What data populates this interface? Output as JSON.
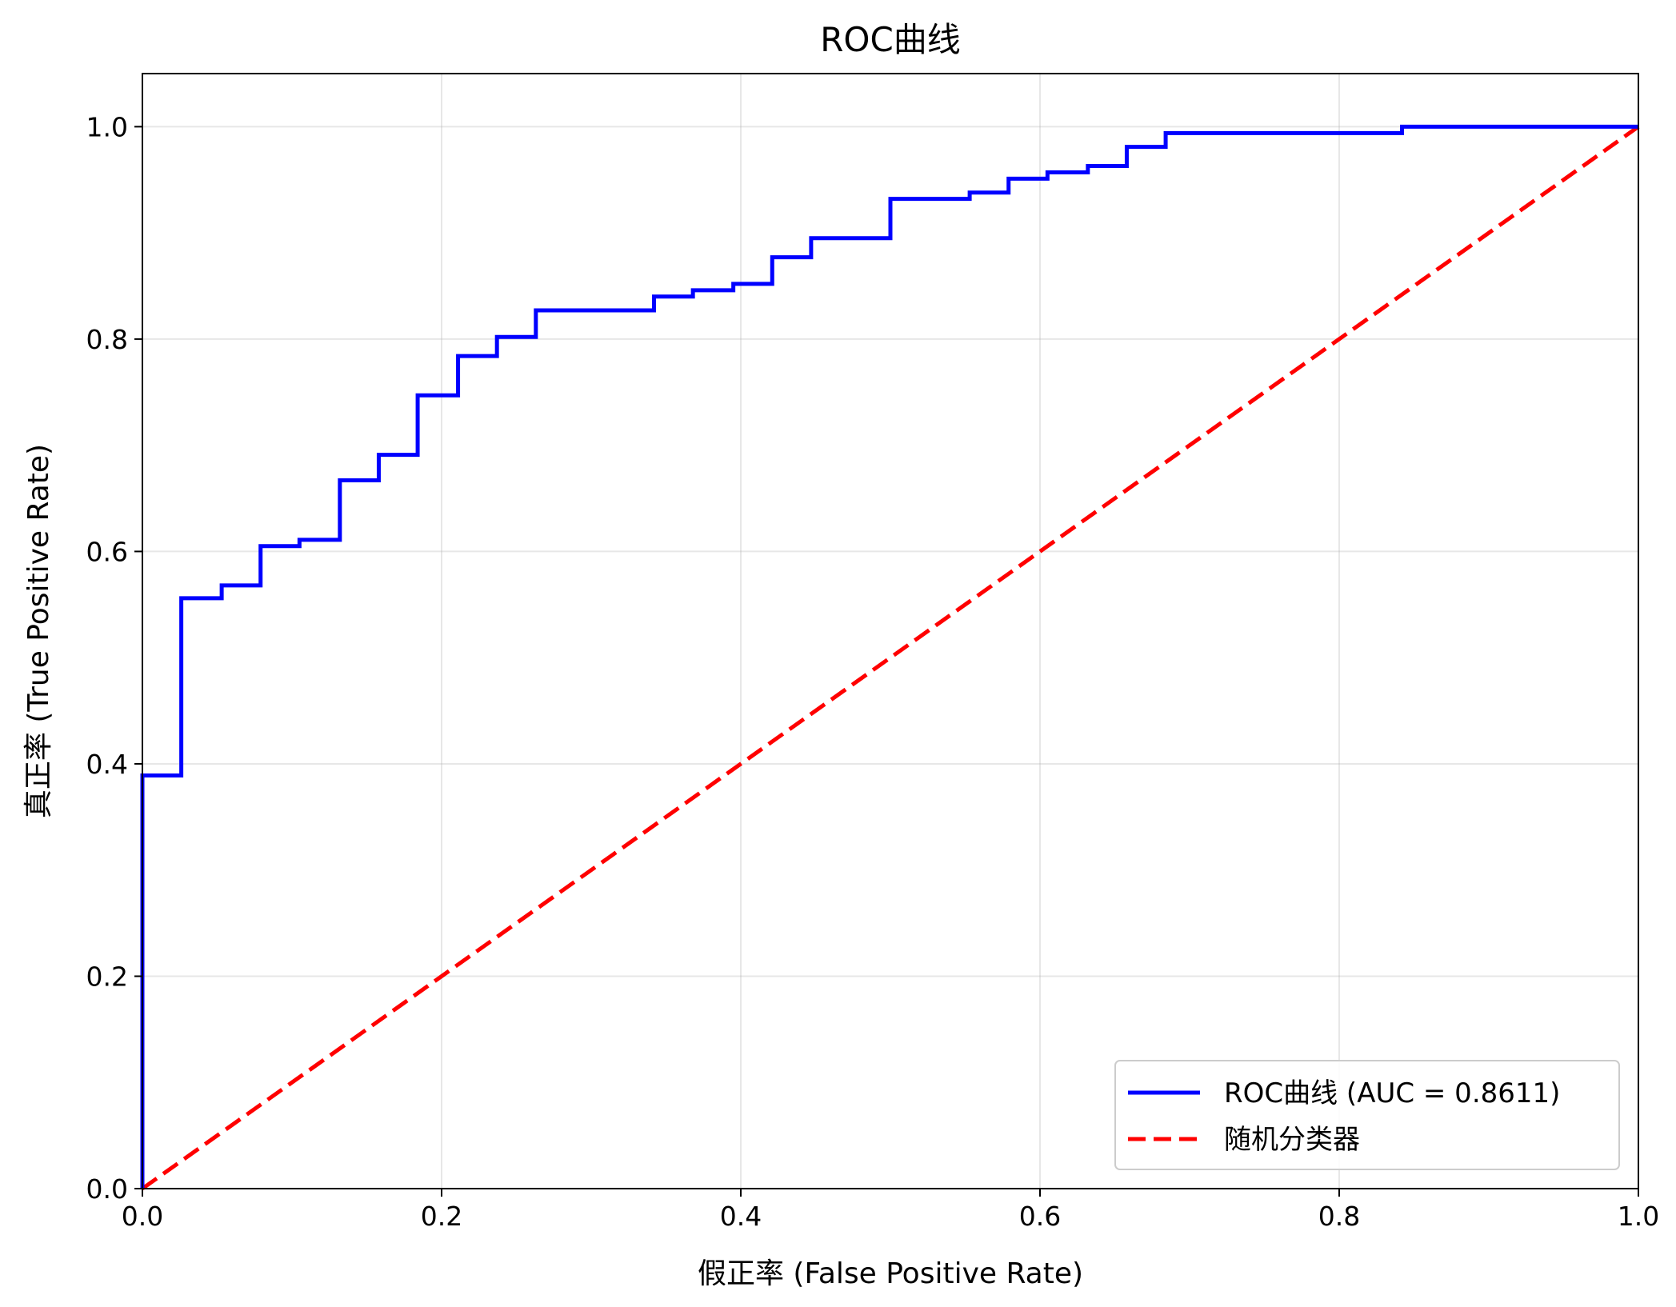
{
  "chart_data": {
    "type": "line",
    "title": "ROC曲线",
    "xlabel": "假正率 (False Positive Rate)",
    "ylabel": "真正率 (True Positive Rate)",
    "xlim": [
      0.0,
      1.0
    ],
    "ylim": [
      0.0,
      1.05
    ],
    "x_ticks": [
      "0.0",
      "0.2",
      "0.4",
      "0.6",
      "0.8",
      "1.0"
    ],
    "y_ticks": [
      "0.0",
      "0.2",
      "0.4",
      "0.6",
      "0.8",
      "1.0"
    ],
    "grid": true,
    "legend_position": "lower-right",
    "series": [
      {
        "name": "ROC曲线 (AUC = 0.8611)",
        "color": "#0000ff",
        "style": "step-solid",
        "x": [
          0.0,
          0.0,
          0.026,
          0.026,
          0.053,
          0.053,
          0.079,
          0.079,
          0.105,
          0.105,
          0.132,
          0.132,
          0.158,
          0.158,
          0.184,
          0.184,
          0.211,
          0.211,
          0.237,
          0.237,
          0.263,
          0.263,
          0.342,
          0.342,
          0.368,
          0.368,
          0.395,
          0.395,
          0.421,
          0.421,
          0.447,
          0.447,
          0.5,
          0.5,
          0.553,
          0.553,
          0.579,
          0.579,
          0.605,
          0.605,
          0.632,
          0.632,
          0.658,
          0.658,
          0.684,
          0.684,
          0.842,
          0.842,
          1.0
        ],
        "y": [
          0.0,
          0.389,
          0.389,
          0.556,
          0.556,
          0.568,
          0.568,
          0.605,
          0.605,
          0.611,
          0.611,
          0.667,
          0.667,
          0.691,
          0.691,
          0.747,
          0.747,
          0.784,
          0.784,
          0.802,
          0.802,
          0.827,
          0.827,
          0.84,
          0.84,
          0.846,
          0.846,
          0.852,
          0.852,
          0.877,
          0.877,
          0.895,
          0.895,
          0.932,
          0.932,
          0.938,
          0.938,
          0.951,
          0.951,
          0.957,
          0.957,
          0.963,
          0.963,
          0.981,
          0.981,
          0.994,
          0.994,
          1.0,
          1.0
        ]
      },
      {
        "name": "随机分类器",
        "color": "#ff0000",
        "style": "dashed",
        "x": [
          0.0,
          1.0
        ],
        "y": [
          0.0,
          1.0
        ]
      }
    ]
  }
}
